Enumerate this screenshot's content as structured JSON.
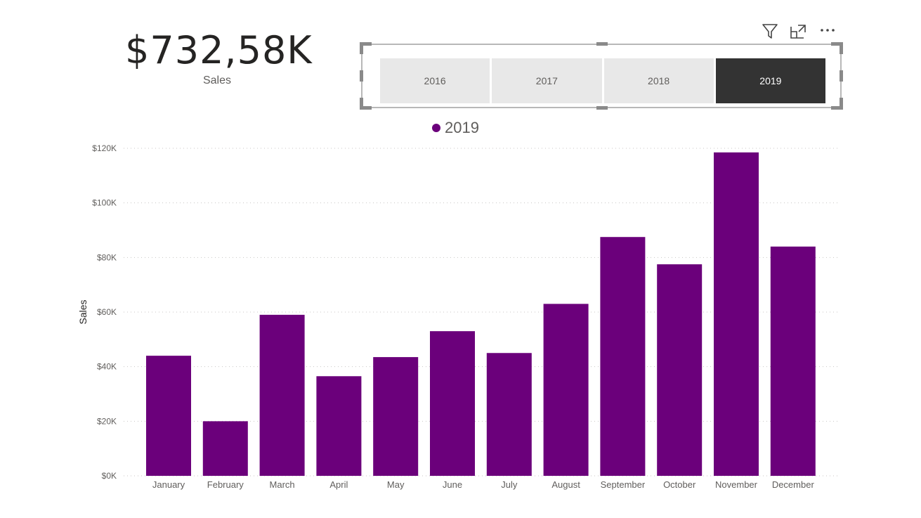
{
  "kpi": {
    "value": "$732,58K",
    "label": "Sales"
  },
  "header_icons": [
    "filter-icon",
    "focus-mode-icon",
    "more-options-icon"
  ],
  "slicer": {
    "items": [
      {
        "label": "2016",
        "selected": false
      },
      {
        "label": "2017",
        "selected": false
      },
      {
        "label": "2018",
        "selected": false
      },
      {
        "label": "2019",
        "selected": true
      }
    ]
  },
  "legend": {
    "label": "2019",
    "color": "#6B007B"
  },
  "chart_data": {
    "type": "bar",
    "categories": [
      "January",
      "February",
      "March",
      "April",
      "May",
      "June",
      "July",
      "August",
      "September",
      "October",
      "November",
      "December"
    ],
    "series": [
      {
        "name": "2019",
        "color": "#6B007B",
        "values": [
          44000,
          20000,
          59000,
          36500,
          43500,
          53000,
          45000,
          63000,
          87500,
          77500,
          118500,
          84000
        ]
      }
    ],
    "ylabel": "Sales",
    "xlabel": "",
    "ylim": [
      0,
      120000
    ],
    "yticks": [
      0,
      20000,
      40000,
      60000,
      80000,
      100000,
      120000
    ],
    "ytick_labels": [
      "$0K",
      "$20K",
      "$40K",
      "$60K",
      "$80K",
      "$100K",
      "$120K"
    ],
    "grid": true,
    "legend_position": "top"
  }
}
